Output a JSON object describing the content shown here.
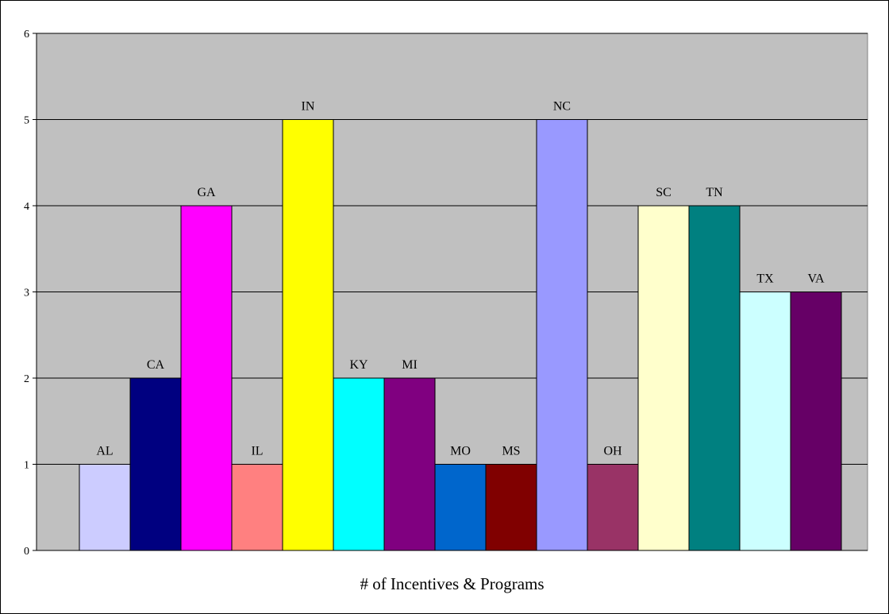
{
  "chart_data": {
    "type": "bar",
    "title": "",
    "xlabel": "# of Incentives & Programs",
    "ylabel": "",
    "ylim": [
      0,
      6
    ],
    "yticks": [
      0,
      1,
      2,
      3,
      4,
      5,
      6
    ],
    "grid": true,
    "legend": "none",
    "plot_background": "#c0c0c0",
    "categories": [
      "AL",
      "CA",
      "GA",
      "IL",
      "IN",
      "KY",
      "MI",
      "MO",
      "MS",
      "NC",
      "OH",
      "SC",
      "TN",
      "TX",
      "VA"
    ],
    "values": [
      1,
      2,
      4,
      1,
      5,
      2,
      2,
      1,
      1,
      5,
      1,
      4,
      4,
      3,
      3
    ],
    "colors": [
      "#ccccff",
      "#000080",
      "#ff00ff",
      "#ff8080",
      "#ffff00",
      "#00ffff",
      "#800080",
      "#0066cc",
      "#800000",
      "#9999ff",
      "#993366",
      "#ffffcc",
      "#008080",
      "#ccffff",
      "#660066"
    ]
  }
}
